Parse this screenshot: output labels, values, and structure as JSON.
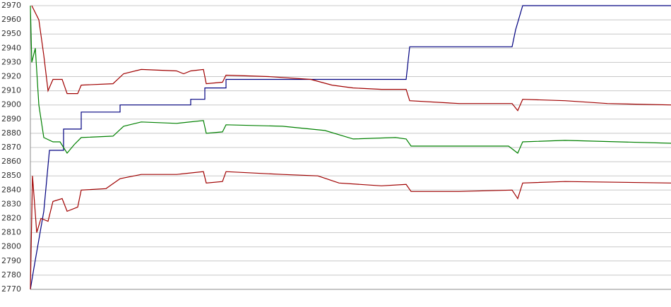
{
  "chart_data": {
    "type": "line",
    "ylim": [
      2770,
      2970
    ],
    "yticks": [
      2770,
      2780,
      2790,
      2800,
      2810,
      2820,
      2830,
      2840,
      2850,
      2860,
      2870,
      2880,
      2890,
      2900,
      2910,
      2920,
      2930,
      2940,
      2950,
      2960,
      2970
    ],
    "xlim": [
      0,
      907
    ],
    "grid": true,
    "series": [
      {
        "color": "#000080",
        "x": [
          0,
          5,
          12,
          19,
          27,
          47,
          47,
          72,
          72,
          127,
          127,
          227,
          227,
          247,
          247,
          277,
          277,
          532,
          537,
          682,
          687,
          697,
          907
        ],
        "values": [
          2770,
          2785,
          2805,
          2825,
          2868,
          2868,
          2883,
          2883,
          2895,
          2895,
          2900,
          2900,
          2904,
          2904,
          2912,
          2912,
          2918,
          2918,
          2941,
          2941,
          2953,
          2970,
          2970
        ]
      },
      {
        "color": "#a00000",
        "x": [
          2,
          12,
          19,
          25,
          32,
          45,
          52,
          67,
          72,
          117,
          132,
          157,
          207,
          217,
          227,
          245,
          249,
          272,
          277,
          337,
          397,
          427,
          457,
          497,
          532,
          537,
          607,
          682,
          690,
          697,
          757,
          817,
          907
        ],
        "values": [
          2970,
          2960,
          2935,
          2910,
          2918,
          2918,
          2908,
          2908,
          2914,
          2915,
          2922,
          2925,
          2924,
          2922,
          2924,
          2925,
          2915,
          2916,
          2921,
          2920,
          2918,
          2914,
          2912,
          2911,
          2911,
          2903,
          2901,
          2901,
          2896,
          2904,
          2903,
          2901,
          2900
        ]
      },
      {
        "color": "#008000",
        "x": [
          0,
          2,
          7,
          12,
          19,
          32,
          42,
          52,
          62,
          72,
          117,
          132,
          157,
          207,
          245,
          249,
          272,
          277,
          357,
          417,
          457,
          517,
          532,
          539,
          677,
          690,
          697,
          757,
          907
        ],
        "values": [
          2970,
          2930,
          2940,
          2900,
          2877,
          2874,
          2874,
          2866,
          2872,
          2877,
          2878,
          2885,
          2888,
          2887,
          2889,
          2880,
          2881,
          2886,
          2885,
          2882,
          2876,
          2877,
          2876,
          2871,
          2871,
          2866,
          2874,
          2875,
          2873
        ]
      },
      {
        "color": "#a00000",
        "x": [
          0,
          3,
          9,
          15,
          25,
          32,
          45,
          52,
          67,
          72,
          107,
          127,
          157,
          207,
          245,
          249,
          272,
          277,
          357,
          407,
          437,
          497,
          532,
          539,
          607,
          682,
          690,
          697,
          757,
          907
        ],
        "values": [
          2770,
          2850,
          2810,
          2820,
          2818,
          2832,
          2834,
          2825,
          2828,
          2840,
          2841,
          2848,
          2851,
          2851,
          2853,
          2845,
          2846,
          2853,
          2851,
          2850,
          2845,
          2843,
          2844,
          2839,
          2839,
          2840,
          2834,
          2845,
          2846,
          2845
        ]
      }
    ]
  }
}
